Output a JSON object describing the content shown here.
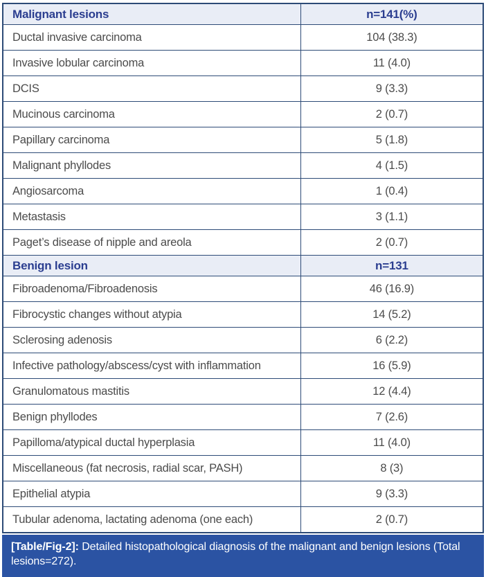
{
  "colors": {
    "border_navy": "#2c4a76",
    "section_header_bg": "#e9edf6",
    "section_header_text": "#2b3e90",
    "body_text": "#4b4b4b",
    "caption_bg": "#2b53a3",
    "caption_text": "#ffffff"
  },
  "table": {
    "sections": [
      {
        "header": {
          "label": "Malignant lesions",
          "count": "n=141(%)"
        },
        "rows": [
          {
            "label": "Ductal invasive carcinoma",
            "value": "104 (38.3)"
          },
          {
            "label": "Invasive lobular carcinoma",
            "value": "11 (4.0)"
          },
          {
            "label": "DCIS",
            "value": "9 (3.3)"
          },
          {
            "label": "Mucinous carcinoma",
            "value": "2 (0.7)"
          },
          {
            "label": "Papillary carcinoma",
            "value": "5 (1.8)"
          },
          {
            "label": "Malignant phyllodes",
            "value": "4 (1.5)"
          },
          {
            "label": "Angiosarcoma",
            "value": "1 (0.4)"
          },
          {
            "label": "Metastasis",
            "value": "3 (1.1)"
          },
          {
            "label": "Paget’s disease of nipple and areola",
            "value": "2 (0.7)"
          }
        ]
      },
      {
        "header": {
          "label": "Benign lesion",
          "count": "n=131"
        },
        "rows": [
          {
            "label": "Fibroadenoma/Fibroadenosis",
            "value": "46 (16.9)"
          },
          {
            "label": "Fibrocystic changes without atypia",
            "value": "14 (5.2)"
          },
          {
            "label": "Sclerosing adenosis",
            "value": "6 (2.2)"
          },
          {
            "label": "Infective pathology/abscess/cyst with inflammation",
            "value": "16 (5.9)"
          },
          {
            "label": "Granulomatous mastitis",
            "value": "12 (4.4)"
          },
          {
            "label": "Benign phyllodes",
            "value": "7 (2.6)"
          },
          {
            "label": "Papilloma/atypical ductal hyperplasia",
            "value": "11 (4.0)"
          },
          {
            "label": "Miscellaneous (fat necrosis, radial scar, PASH)",
            "value": "8 (3)"
          },
          {
            "label": "Epithelial atypia",
            "value": "9 (3.3)"
          },
          {
            "label": "Tubular adenoma, lactating adenoma (one each)",
            "value": "2 (0.7)"
          }
        ]
      }
    ],
    "caption": {
      "tag": "[Table/Fig-2]:",
      "text": "Detailed histopathological diagnosis of the malignant and benign lesions (Total lesions=272)."
    }
  }
}
